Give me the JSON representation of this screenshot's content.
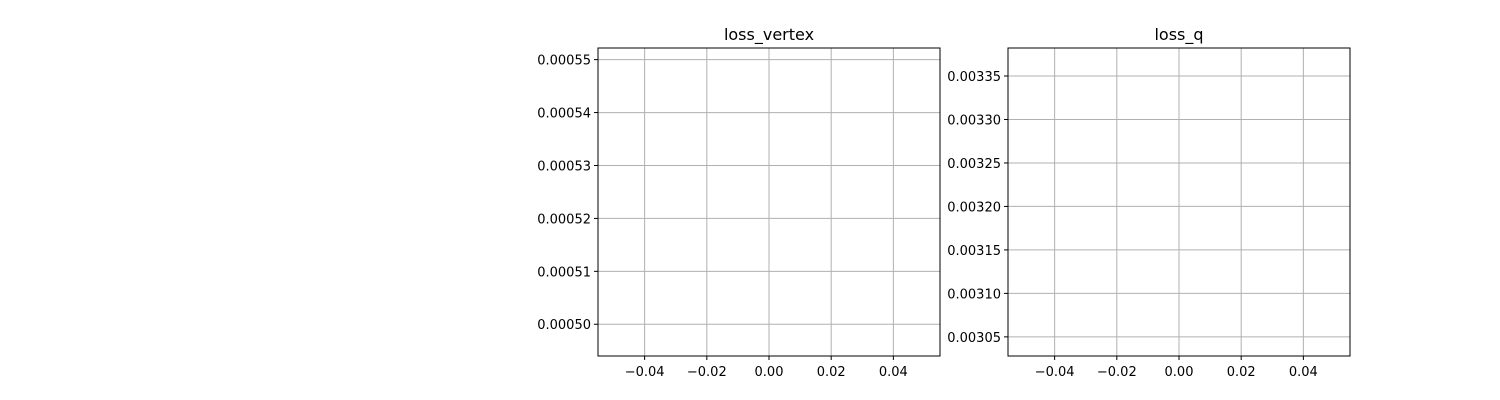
{
  "chart_data": [
    {
      "type": "line",
      "title": "loss_vertex",
      "series": [],
      "xlim": [
        -0.055,
        0.055
      ],
      "ylim": [
        0.000494,
        0.0005522
      ],
      "x_ticks": [
        -0.04,
        -0.02,
        0.0,
        0.02,
        0.04
      ],
      "x_tick_labels": [
        "−0.04",
        "−0.02",
        "0.00",
        "0.02",
        "0.04"
      ],
      "y_ticks": [
        0.0005,
        0.00051,
        0.00052,
        0.00053,
        0.00054,
        0.00055
      ],
      "y_tick_labels": [
        "0.00050",
        "0.00051",
        "0.00052",
        "0.00053",
        "0.00054",
        "0.00055"
      ],
      "grid": true,
      "xlabel": "",
      "ylabel": ""
    },
    {
      "type": "line",
      "title": "loss_q",
      "series": [],
      "xlim": [
        -0.055,
        0.055
      ],
      "ylim": [
        0.003028,
        0.0033822
      ],
      "x_ticks": [
        -0.04,
        -0.02,
        0.0,
        0.02,
        0.04
      ],
      "x_tick_labels": [
        "−0.04",
        "−0.02",
        "0.00",
        "0.02",
        "0.04"
      ],
      "y_ticks": [
        0.00305,
        0.0031,
        0.00315,
        0.0032,
        0.00325,
        0.0033,
        0.00335
      ],
      "y_tick_labels": [
        "0.00305",
        "0.00310",
        "0.00315",
        "0.00320",
        "0.00325",
        "0.00330",
        "0.00335"
      ],
      "grid": true,
      "xlabel": "",
      "ylabel": ""
    }
  ]
}
